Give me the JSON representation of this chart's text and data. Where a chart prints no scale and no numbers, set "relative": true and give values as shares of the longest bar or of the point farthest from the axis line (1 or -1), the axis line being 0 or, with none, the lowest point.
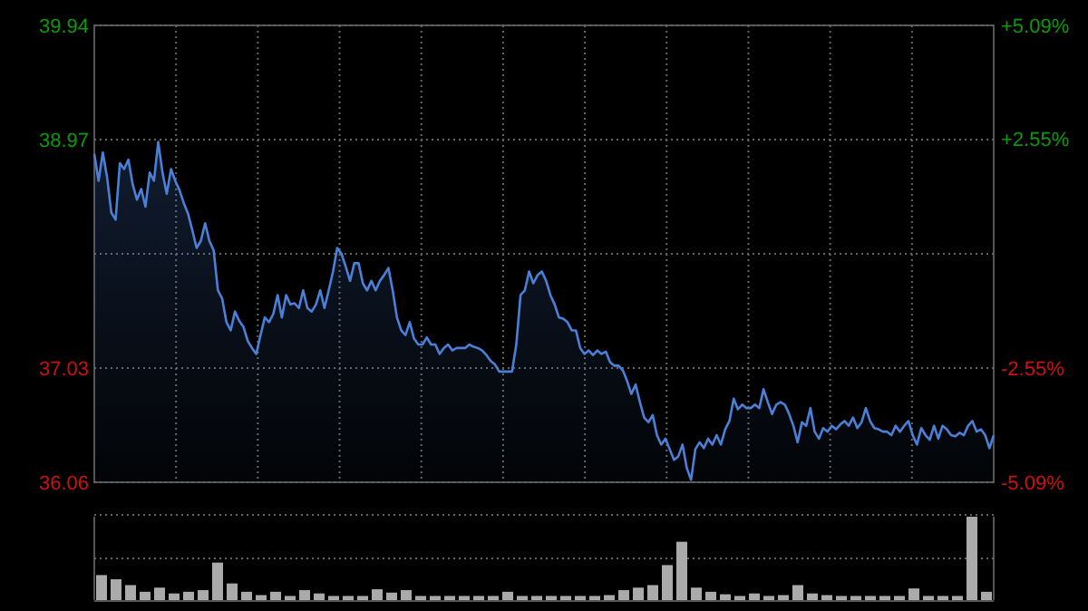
{
  "chart_data": [
    {
      "type": "area",
      "categories": [
        null,
        null,
        null,
        null,
        null,
        null,
        null,
        null,
        null,
        null,
        null,
        null,
        null,
        null,
        null,
        null,
        null,
        null,
        null,
        null,
        null,
        null,
        null,
        null,
        null,
        null,
        null,
        null,
        null,
        null,
        null,
        null,
        null,
        null,
        null,
        null,
        null,
        null,
        null,
        null,
        null,
        null,
        null,
        null,
        null,
        null,
        null,
        null,
        null,
        null,
        null,
        null,
        null,
        null,
        null,
        null,
        null,
        null,
        null,
        null,
        null,
        null,
        null,
        null,
        null,
        null,
        null,
        null,
        null,
        null,
        null,
        null,
        null,
        null,
        null,
        null,
        null,
        null,
        null,
        null,
        null,
        null,
        null,
        null,
        null,
        null,
        null,
        null,
        null,
        null,
        null,
        null,
        null,
        null,
        null,
        null,
        null,
        null,
        null,
        null,
        null,
        null,
        null,
        null,
        null,
        null,
        null,
        null,
        null,
        null,
        null,
        null,
        null,
        null,
        null,
        null,
        null,
        null,
        null,
        null,
        null,
        null,
        null,
        null,
        null,
        null,
        null,
        null,
        null,
        null,
        null,
        null,
        null,
        null,
        null,
        null,
        null,
        null,
        null,
        null,
        null,
        null,
        null,
        null,
        null,
        null,
        null,
        null,
        null,
        null,
        null,
        null,
        null,
        null,
        null,
        null,
        null,
        null,
        null,
        null,
        null,
        null,
        null,
        null,
        null,
        null,
        null,
        null,
        null,
        null,
        null,
        null,
        null,
        null,
        null,
        null,
        null,
        null,
        null,
        null,
        null,
        null,
        null,
        null,
        null,
        null,
        null,
        null,
        null,
        null,
        null,
        null,
        null,
        null,
        null,
        null,
        null,
        null,
        null,
        null,
        null,
        null,
        null,
        null,
        null,
        null,
        null,
        null,
        null,
        null,
        null,
        null
      ],
      "ylim": [
        36.06,
        39.94
      ],
      "yticks": [
        36.06,
        37.03,
        {
          "value": 38.0,
          "label": null
        },
        38.97,
        39.94
      ],
      "y2lim": [
        -5.09,
        5.09
      ],
      "y2ticks": [
        {
          "value": -5.09,
          "label": "-5.09%"
        },
        {
          "value": -2.55,
          "label": "-2.55%"
        },
        {
          "value": 2.55,
          "label": "+2.55%"
        },
        {
          "value": 5.09,
          "label": "+5.09%"
        }
      ],
      "grid": true,
      "tick_labels": "y",
      "series": [
        {
          "color": "#4a80d8",
          "values": [
            38.85,
            38.62,
            38.86,
            38.65,
            38.35,
            38.29,
            38.77,
            38.72,
            38.8,
            38.59,
            38.46,
            38.55,
            38.4,
            38.69,
            38.62,
            38.95,
            38.69,
            38.51,
            38.72,
            38.62,
            38.54,
            38.43,
            38.34,
            38.2,
            38.05,
            38.11,
            38.26,
            38.11,
            38.03,
            37.69,
            37.62,
            37.42,
            37.35,
            37.51,
            37.43,
            37.38,
            37.26,
            37.2,
            37.15,
            37.31,
            37.46,
            37.42,
            37.49,
            37.65,
            37.46,
            37.65,
            37.57,
            37.58,
            37.54,
            37.69,
            37.54,
            37.51,
            37.57,
            37.69,
            37.54,
            37.69,
            37.85,
            38.05,
            38.0,
            37.89,
            37.77,
            37.92,
            37.92,
            37.75,
            37.69,
            37.77,
            37.69,
            37.77,
            37.82,
            37.88,
            37.69,
            37.46,
            37.35,
            37.31,
            37.42,
            37.28,
            37.23,
            37.23,
            37.29,
            37.23,
            37.23,
            37.15,
            37.2,
            37.23,
            37.18,
            37.2,
            37.2,
            37.2,
            37.23,
            37.21,
            37.2,
            37.18,
            37.14,
            37.09,
            37.06,
            37.0,
            37.0,
            37.0,
            37.0,
            37.23,
            37.65,
            37.69,
            37.85,
            37.75,
            37.82,
            37.85,
            37.77,
            37.65,
            37.57,
            37.46,
            37.45,
            37.42,
            37.35,
            37.35,
            37.2,
            37.15,
            37.18,
            37.14,
            37.18,
            37.15,
            37.17,
            37.08,
            37.05,
            37.05,
            37.01,
            36.92,
            36.81,
            36.89,
            36.74,
            36.61,
            36.57,
            36.63,
            36.46,
            36.38,
            36.43,
            36.34,
            36.25,
            36.28,
            36.38,
            36.18,
            36.08,
            36.34,
            36.4,
            36.35,
            36.43,
            36.38,
            36.46,
            36.38,
            36.51,
            36.58,
            36.77,
            36.68,
            36.72,
            36.69,
            36.69,
            36.72,
            36.69,
            36.85,
            36.74,
            36.64,
            36.72,
            36.74,
            36.72,
            36.64,
            36.54,
            36.4,
            36.57,
            36.54,
            36.69,
            36.49,
            36.43,
            36.52,
            36.49,
            36.54,
            36.51,
            36.55,
            36.58,
            36.54,
            36.61,
            36.52,
            36.57,
            36.69,
            36.58,
            36.52,
            36.51,
            36.49,
            36.49,
            36.46,
            36.54,
            36.49,
            36.54,
            36.58,
            36.46,
            36.38,
            36.52,
            36.46,
            36.42,
            36.54,
            36.43,
            36.54,
            36.51,
            36.46,
            36.45,
            36.48,
            36.46,
            36.54,
            36.58,
            36.49,
            36.51,
            36.46,
            36.35,
            36.46
          ]
        }
      ]
    },
    {
      "type": "bar",
      "relative": true,
      "ref_lines": [
        {
          "axis": "y",
          "value": 0.5
        }
      ],
      "categories": [
        null,
        null,
        null,
        null,
        null,
        null,
        null,
        null,
        null,
        null,
        null,
        null,
        null,
        null,
        null,
        null,
        null,
        null,
        null,
        null,
        null,
        null,
        null,
        null,
        null,
        null,
        null,
        null,
        null,
        null,
        null,
        null,
        null,
        null,
        null,
        null,
        null,
        null,
        null,
        null,
        null,
        null,
        null,
        null,
        null,
        null,
        null,
        null,
        null,
        null,
        null,
        null,
        null,
        null,
        null,
        null,
        null,
        null,
        null,
        null,
        null,
        null
      ],
      "color": "#aaaaaa",
      "values": [
        0.3,
        0.25,
        0.18,
        0.1,
        0.15,
        0.08,
        0.1,
        0.12,
        0.45,
        0.2,
        0.1,
        0.06,
        0.1,
        0.05,
        0.12,
        0.08,
        0.05,
        0.05,
        0.05,
        0.13,
        0.09,
        0.12,
        0.05,
        0.05,
        0.05,
        0.05,
        0.05,
        0.05,
        0.1,
        0.05,
        0.05,
        0.05,
        0.05,
        0.05,
        0.05,
        0.06,
        0.12,
        0.15,
        0.18,
        0.42,
        0.7,
        0.15,
        0.1,
        0.07,
        0.05,
        0.08,
        0.05,
        0.06,
        0.18,
        0.08,
        0.06,
        0.05,
        0.05,
        0.05,
        0.05,
        0.05,
        0.14,
        0.05,
        0.05,
        0.05,
        1.0,
        0.1
      ]
    }
  ]
}
